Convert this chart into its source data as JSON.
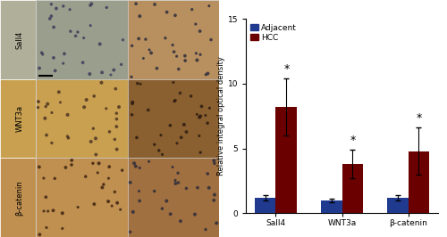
{
  "categories": [
    "Sall4",
    "WNT3a",
    "β-catenin"
  ],
  "adjacent_values": [
    1.2,
    1.0,
    1.2
  ],
  "hcc_values": [
    8.2,
    3.8,
    4.8
  ],
  "adjacent_errors": [
    0.2,
    0.15,
    0.2
  ],
  "hcc_errors": [
    2.2,
    1.1,
    1.8
  ],
  "adjacent_color": "#1f3a8f",
  "hcc_color": "#6b0000",
  "ylabel": "Relative integral optical density",
  "ylim": [
    0,
    15
  ],
  "yticks": [
    0,
    5,
    10,
    15
  ],
  "legend_labels": [
    "Adjacent",
    "HCC"
  ],
  "bar_width": 0.32,
  "significance_hcc": [
    true,
    true,
    true
  ],
  "row_labels": [
    "Sall4",
    "WNT3a",
    "β-catenin"
  ],
  "col_headers": [
    "Adjacent",
    "HCC"
  ],
  "background_color": "#ffffff",
  "img_colors": [
    [
      "#9a9e8c",
      "#b89060"
    ],
    [
      "#c8a050",
      "#8a6030"
    ],
    [
      "#c09050",
      "#a07040"
    ]
  ],
  "dot_colors": [
    [
      "#3a3a5a",
      "#2a2a3a"
    ],
    [
      "#4a3020",
      "#2a1a10"
    ],
    [
      "#3a2010",
      "#2a2a3a"
    ]
  ]
}
